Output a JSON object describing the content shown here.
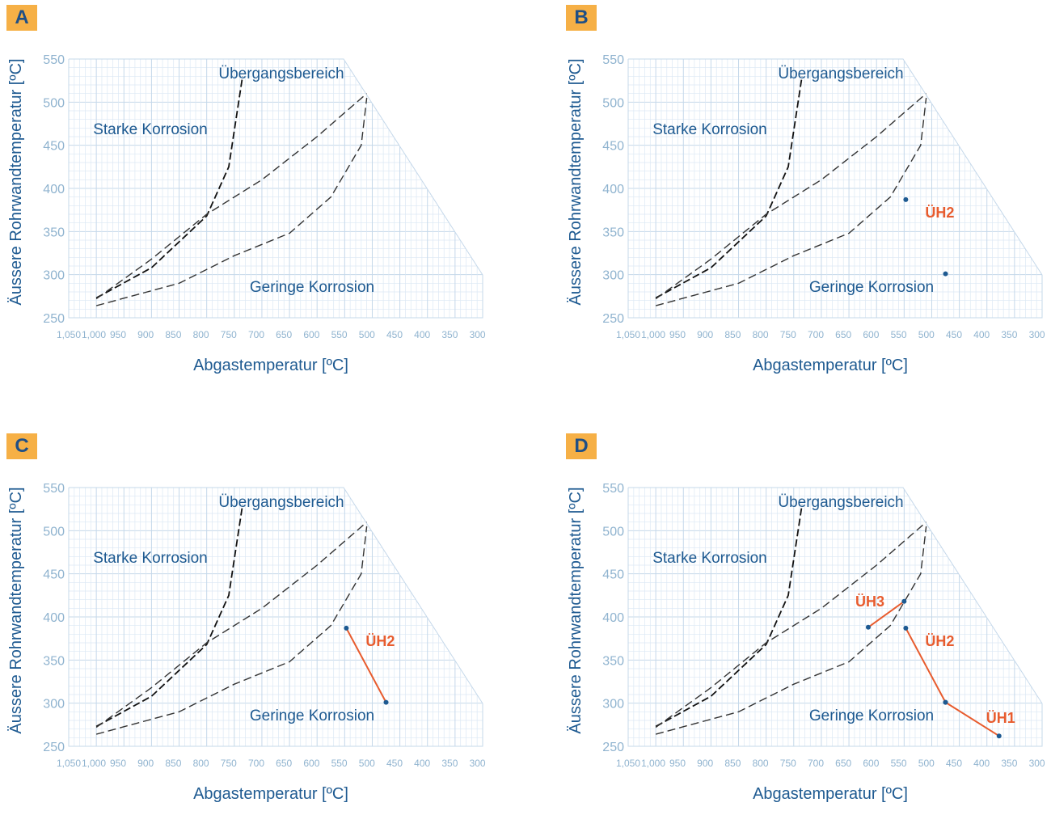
{
  "chart_data": [
    {
      "type": "line",
      "panel": "A",
      "xlabel": "Abgastemperatur [ºC]",
      "ylabel": "Äussere Rohrwandtemperatur [ºC]",
      "x_ticks": [
        "1,050",
        "1,000",
        "950",
        "900",
        "850",
        "800",
        "750",
        "700",
        "650",
        "600",
        "550",
        "500",
        "450",
        "400",
        "350",
        "300"
      ],
      "y_ticks": [
        "550",
        "500",
        "450",
        "400",
        "350",
        "300",
        "250"
      ],
      "xlim": [
        1050,
        300
      ],
      "ylim": [
        250,
        550
      ],
      "grid": true,
      "regions": [
        {
          "name": "Starke Korrosion"
        },
        {
          "name": "Übergangsbereich"
        },
        {
          "name": "Geringe Korrosion"
        }
      ],
      "boundaries": [
        {
          "style": "dashed-bold",
          "points": [
            [
              1000,
              273
            ],
            [
              900,
              308
            ],
            [
              800,
              368
            ],
            [
              760,
              425
            ],
            [
              735,
              530
            ]
          ]
        },
        {
          "style": "dashed",
          "points": [
            [
              1000,
              272
            ],
            [
              900,
              318
            ],
            [
              800,
              370
            ],
            [
              700,
              410
            ],
            [
              600,
              460
            ],
            [
              510,
              510
            ]
          ]
        },
        {
          "style": "dashed",
          "points": [
            [
              1000,
              264
            ],
            [
              850,
              290
            ],
            [
              750,
              322
            ],
            [
              650,
              348
            ],
            [
              575,
              390
            ],
            [
              520,
              450
            ],
            [
              510,
              505
            ]
          ]
        }
      ],
      "heat_exchangers": []
    },
    {
      "type": "line",
      "panel": "B",
      "xlabel": "Abgastemperatur [ºC]",
      "ylabel": "Äussere Rohrwandtemperatur [ºC]",
      "x_ticks": [
        "1,050",
        "1,000",
        "950",
        "900",
        "850",
        "800",
        "750",
        "700",
        "650",
        "600",
        "550",
        "500",
        "450",
        "400",
        "350",
        "300"
      ],
      "y_ticks": [
        "550",
        "500",
        "450",
        "400",
        "350",
        "300",
        "250"
      ],
      "xlim": [
        1050,
        300
      ],
      "ylim": [
        250,
        550
      ],
      "grid": true,
      "regions": [
        {
          "name": "Starke Korrosion"
        },
        {
          "name": "Übergangsbereich"
        },
        {
          "name": "Geringe Korrosion"
        }
      ],
      "boundaries": [
        {
          "style": "dashed-bold",
          "points": [
            [
              1000,
              273
            ],
            [
              900,
              308
            ],
            [
              800,
              368
            ],
            [
              760,
              425
            ],
            [
              735,
              530
            ]
          ]
        },
        {
          "style": "dashed",
          "points": [
            [
              1000,
              272
            ],
            [
              900,
              318
            ],
            [
              800,
              370
            ],
            [
              700,
              410
            ],
            [
              600,
              460
            ],
            [
              510,
              510
            ]
          ]
        },
        {
          "style": "dashed",
          "points": [
            [
              1000,
              264
            ],
            [
              850,
              290
            ],
            [
              750,
              322
            ],
            [
              650,
              348
            ],
            [
              575,
              390
            ],
            [
              520,
              450
            ],
            [
              510,
              505
            ]
          ]
        }
      ],
      "heat_exchangers": [
        {
          "name": "ÜH2",
          "points": [
            [
              547,
              387
            ],
            [
              475,
              301
            ]
          ],
          "connected": false
        }
      ]
    },
    {
      "type": "line",
      "panel": "C",
      "xlabel": "Abgastemperatur [ºC]",
      "ylabel": "Äussere Rohrwandtemperatur [ºC]",
      "x_ticks": [
        "1,050",
        "1,000",
        "950",
        "900",
        "850",
        "800",
        "750",
        "700",
        "650",
        "600",
        "550",
        "500",
        "450",
        "400",
        "350",
        "300"
      ],
      "y_ticks": [
        "550",
        "500",
        "450",
        "400",
        "350",
        "300",
        "250"
      ],
      "xlim": [
        1050,
        300
      ],
      "ylim": [
        250,
        550
      ],
      "grid": true,
      "regions": [
        {
          "name": "Starke Korrosion"
        },
        {
          "name": "Übergangsbereich"
        },
        {
          "name": "Geringe Korrosion"
        }
      ],
      "boundaries": [
        {
          "style": "dashed-bold",
          "points": [
            [
              1000,
              273
            ],
            [
              900,
              308
            ],
            [
              800,
              368
            ],
            [
              760,
              425
            ],
            [
              735,
              530
            ]
          ]
        },
        {
          "style": "dashed",
          "points": [
            [
              1000,
              272
            ],
            [
              900,
              318
            ],
            [
              800,
              370
            ],
            [
              700,
              410
            ],
            [
              600,
              460
            ],
            [
              510,
              510
            ]
          ]
        },
        {
          "style": "dashed",
          "points": [
            [
              1000,
              264
            ],
            [
              850,
              290
            ],
            [
              750,
              322
            ],
            [
              650,
              348
            ],
            [
              575,
              390
            ],
            [
              520,
              450
            ],
            [
              510,
              505
            ]
          ]
        }
      ],
      "heat_exchangers": [
        {
          "name": "ÜH2",
          "points": [
            [
              547,
              387
            ],
            [
              475,
              301
            ]
          ],
          "connected": true
        }
      ]
    },
    {
      "type": "line",
      "panel": "D",
      "xlabel": "Abgastemperatur [ºC]",
      "ylabel": "Äussere Rohrwandtemperatur [ºC]",
      "x_ticks": [
        "1,050",
        "1,000",
        "950",
        "900",
        "850",
        "800",
        "750",
        "700",
        "650",
        "600",
        "550",
        "500",
        "450",
        "400",
        "350",
        "300"
      ],
      "y_ticks": [
        "550",
        "500",
        "450",
        "400",
        "350",
        "300",
        "250"
      ],
      "xlim": [
        1050,
        300
      ],
      "ylim": [
        250,
        550
      ],
      "grid": true,
      "regions": [
        {
          "name": "Starke Korrosion"
        },
        {
          "name": "Übergangsbereich"
        },
        {
          "name": "Geringe Korrosion"
        }
      ],
      "boundaries": [
        {
          "style": "dashed-bold",
          "points": [
            [
              1000,
              273
            ],
            [
              900,
              308
            ],
            [
              800,
              368
            ],
            [
              760,
              425
            ],
            [
              735,
              530
            ]
          ]
        },
        {
          "style": "dashed",
          "points": [
            [
              1000,
              272
            ],
            [
              900,
              318
            ],
            [
              800,
              370
            ],
            [
              700,
              410
            ],
            [
              600,
              460
            ],
            [
              510,
              510
            ]
          ]
        },
        {
          "style": "dashed",
          "points": [
            [
              1000,
              264
            ],
            [
              850,
              290
            ],
            [
              750,
              322
            ],
            [
              650,
              348
            ],
            [
              575,
              390
            ],
            [
              520,
              450
            ],
            [
              510,
              505
            ]
          ]
        }
      ],
      "heat_exchangers": [
        {
          "name": "ÜH3",
          "points": [
            [
              615,
              388
            ],
            [
              550,
              418
            ]
          ],
          "connected": true
        },
        {
          "name": "ÜH2",
          "points": [
            [
              547,
              387
            ],
            [
              475,
              301
            ]
          ],
          "connected": true
        },
        {
          "name": "ÜH1",
          "points": [
            [
              475,
              301
            ],
            [
              378,
              262
            ]
          ],
          "connected": true
        }
      ]
    }
  ],
  "colors": {
    "badge": "#f6b046",
    "label_blue": "#1e5a91",
    "tick_blue": "#8fb3cf",
    "hex_orange": "#e85c2e"
  }
}
